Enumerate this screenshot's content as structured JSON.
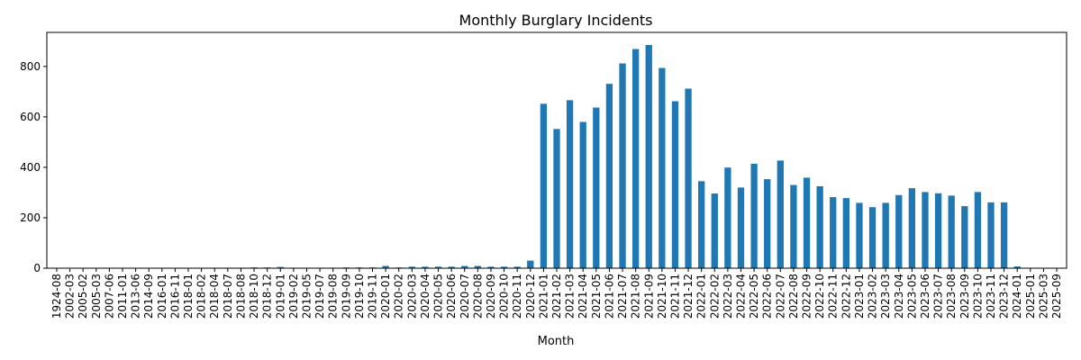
{
  "chart_data": {
    "type": "bar",
    "title": "Monthly Burglary Incidents",
    "xlabel": "Month",
    "ylabel": "",
    "ylim": [
      0,
      935
    ],
    "yticks": [
      0,
      200,
      400,
      600,
      800
    ],
    "grid": false,
    "legend": "none",
    "bar_color": "#1f77b4",
    "categories": [
      "1924-08",
      "2002-03",
      "2005-02",
      "2005-03",
      "2007-06",
      "2011-01",
      "2013-06",
      "2014-09",
      "2016-01",
      "2016-11",
      "2018-01",
      "2018-02",
      "2018-04",
      "2018-07",
      "2018-08",
      "2018-10",
      "2018-12",
      "2019-01",
      "2019-02",
      "2019-05",
      "2019-07",
      "2019-08",
      "2019-09",
      "2019-10",
      "2019-11",
      "2020-01",
      "2020-02",
      "2020-03",
      "2020-04",
      "2020-05",
      "2020-06",
      "2020-07",
      "2020-08",
      "2020-09",
      "2020-10",
      "2020-11",
      "2020-12",
      "2021-01",
      "2021-02",
      "2021-03",
      "2021-04",
      "2021-05",
      "2021-06",
      "2021-07",
      "2021-08",
      "2021-09",
      "2021-10",
      "2021-11",
      "2021-12",
      "2022-01",
      "2022-02",
      "2022-03",
      "2022-04",
      "2022-05",
      "2022-06",
      "2022-07",
      "2022-08",
      "2022-09",
      "2022-10",
      "2022-11",
      "2022-12",
      "2023-01",
      "2023-02",
      "2023-03",
      "2023-04",
      "2023-05",
      "2023-06",
      "2023-07",
      "2023-08",
      "2023-09",
      "2023-10",
      "2023-11",
      "2023-12",
      "2024-01",
      "2025-01",
      "2025-03",
      "2025-09"
    ],
    "values": [
      1,
      1,
      1,
      1,
      1,
      1,
      1,
      1,
      1,
      1,
      1,
      1,
      2,
      2,
      2,
      3,
      3,
      5,
      2,
      2,
      2,
      2,
      3,
      3,
      3,
      9,
      3,
      6,
      6,
      6,
      6,
      9,
      9,
      6,
      6,
      6,
      30,
      652,
      552,
      666,
      580,
      637,
      731,
      812,
      869,
      885,
      794,
      662,
      712,
      345,
      296,
      399,
      320,
      414,
      353,
      427,
      330,
      359,
      325,
      282,
      278,
      259,
      242,
      259,
      290,
      317,
      302,
      297,
      288,
      246,
      302,
      261,
      261,
      7,
      1,
      1,
      1
    ]
  }
}
